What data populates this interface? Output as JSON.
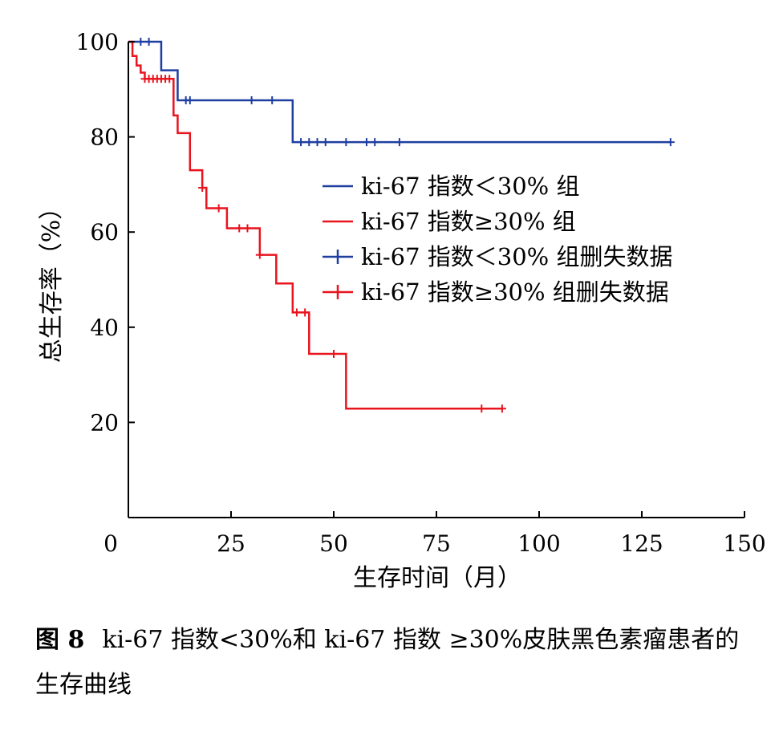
{
  "chart_data": {
    "type": "line",
    "xlabel": "生存时间（月）",
    "ylabel": "总生存率（%）",
    "xlim": [
      0,
      150
    ],
    "ylim": [
      0,
      100
    ],
    "xticks": [
      0,
      25,
      50,
      75,
      100,
      125,
      150
    ],
    "yticks": [
      20,
      40,
      60,
      80,
      100
    ],
    "grid": false,
    "legend_position": "right-center",
    "legend": [
      {
        "label": "ki-67 指数＜30% 组",
        "color": "#1f3fa0",
        "kind": "line"
      },
      {
        "label": "ki-67 指数≥30% 组",
        "color": "#e8141e",
        "kind": "line"
      },
      {
        "label": "ki-67 指数＜30% 组删失数据",
        "color": "#1f3fa0",
        "kind": "censor"
      },
      {
        "label": "ki-67 指数≥30% 组删失数据",
        "color": "#e8141e",
        "kind": "censor"
      }
    ],
    "series": [
      {
        "name": "ki-67 指数＜30% 组",
        "color": "#1f3fa0",
        "steps": [
          [
            0,
            100
          ],
          [
            8,
            94
          ],
          [
            12,
            87.7
          ],
          [
            40,
            78.9
          ],
          [
            132,
            78.9
          ]
        ],
        "censored": [
          [
            3,
            100
          ],
          [
            5,
            100
          ],
          [
            14,
            87.7
          ],
          [
            15,
            87.7
          ],
          [
            30,
            87.7
          ],
          [
            35,
            87.7
          ],
          [
            42,
            78.9
          ],
          [
            44,
            78.9
          ],
          [
            46,
            78.9
          ],
          [
            48,
            78.9
          ],
          [
            53,
            78.9
          ],
          [
            58,
            78.9
          ],
          [
            60,
            78.9
          ],
          [
            66,
            78.9
          ],
          [
            132,
            78.9
          ]
        ]
      },
      {
        "name": "ki-67 指数≥30% 组",
        "color": "#e8141e",
        "steps": [
          [
            0,
            100
          ],
          [
            1,
            97
          ],
          [
            2,
            95
          ],
          [
            3,
            93.5
          ],
          [
            4,
            92.2
          ],
          [
            11,
            84.5
          ],
          [
            12,
            80.8
          ],
          [
            15,
            73
          ],
          [
            18,
            69.3
          ],
          [
            19,
            65
          ],
          [
            24,
            60.8
          ],
          [
            32,
            55.2
          ],
          [
            36,
            49.2
          ],
          [
            40,
            43.1
          ],
          [
            44,
            34.4
          ],
          [
            53,
            22.9
          ],
          [
            91,
            22.9
          ]
        ],
        "censored": [
          [
            4,
            92.2
          ],
          [
            5,
            92.2
          ],
          [
            6,
            92.2
          ],
          [
            7,
            92.2
          ],
          [
            8,
            92.2
          ],
          [
            9,
            92.2
          ],
          [
            10,
            92.2
          ],
          [
            18,
            69.3
          ],
          [
            22,
            65
          ],
          [
            27,
            60.8
          ],
          [
            29,
            60.8
          ],
          [
            32,
            55.2
          ],
          [
            41,
            43.1
          ],
          [
            43,
            43.1
          ],
          [
            50,
            34.4
          ],
          [
            86,
            22.9
          ],
          [
            91,
            22.9
          ]
        ]
      }
    ]
  },
  "caption": {
    "label": "图 8",
    "text": "ki-67 指数<30%和 ki-67 指数 ≥30%皮肤黑色素瘤患者的生存曲线"
  }
}
